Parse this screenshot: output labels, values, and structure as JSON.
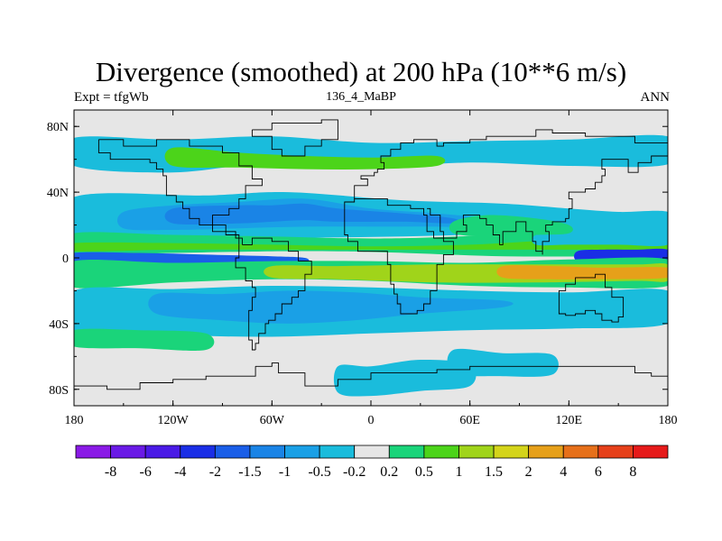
{
  "chart_data": {
    "type": "heatmap",
    "title": "Divergence (smoothed) at 200 hPa (10**6 m/s)",
    "subtitle_left": "Expt = tfgWb",
    "subtitle_center": "136_4_MaBP",
    "subtitle_right": "ANN",
    "x_ticks": [
      {
        "value": -180,
        "label": "180"
      },
      {
        "value": -120,
        "label": "120W"
      },
      {
        "value": -60,
        "label": "60W"
      },
      {
        "value": 0,
        "label": "0"
      },
      {
        "value": 60,
        "label": "60E"
      },
      {
        "value": 120,
        "label": "120E"
      },
      {
        "value": 180,
        "label": "180"
      }
    ],
    "y_ticks": [
      {
        "value": 80,
        "label": "80N"
      },
      {
        "value": 40,
        "label": "40N"
      },
      {
        "value": 0,
        "label": "0"
      },
      {
        "value": -40,
        "label": "40S"
      },
      {
        "value": -80,
        "label": "80S"
      }
    ],
    "xlim": [
      -180,
      180
    ],
    "ylim": [
      -90,
      90
    ],
    "colorbar": {
      "colors": [
        "#8a1ae6",
        "#6a1ae6",
        "#4a1ae6",
        "#1a2ee6",
        "#1a5ee8",
        "#1a84e6",
        "#1aa0e6",
        "#1abcdc",
        "#e6e6e6",
        "#1ad47a",
        "#4cd41a",
        "#a0d41a",
        "#d4d41a",
        "#e6a01a",
        "#e6701a",
        "#e6401a",
        "#e61a1a"
      ],
      "labels": [
        "-8",
        "-6",
        "-4",
        "-2",
        "-1.5",
        "-1",
        "-0.5",
        "-0.2",
        "0.2",
        "0.5",
        "1",
        "1.5",
        "2",
        "4",
        "6",
        "8"
      ]
    },
    "regions": [
      {
        "color": "#1abcdc",
        "lon": [
          -180,
          -100,
          -50,
          20,
          80,
          120,
          150,
          180
        ],
        "lat_top": [
          37,
          38,
          40,
          35,
          33,
          30,
          28,
          28
        ],
        "lat_bot": [
          8,
          10,
          12,
          13,
          15,
          18,
          18,
          18
        ]
      },
      {
        "color": "#1aa0e6",
        "lon": [
          -150,
          -120,
          -80,
          -40,
          0,
          40,
          80
        ],
        "lat_top": [
          28,
          32,
          34,
          36,
          30,
          27,
          23
        ],
        "lat_bot": [
          18,
          17,
          18,
          19,
          19,
          19,
          18
        ]
      },
      {
        "color": "#1a84e6",
        "lon": [
          -120,
          -80,
          -60,
          -40,
          -20,
          20,
          50
        ],
        "lat_top": [
          30,
          32,
          32,
          33,
          30,
          27,
          24
        ],
        "lat_bot": [
          21,
          21,
          22,
          23,
          22,
          22,
          21
        ]
      },
      {
        "color": "#1ad47a",
        "lon": [
          -180,
          -120,
          -60,
          -20,
          20,
          80,
          140,
          180
        ],
        "lat_top": [
          15,
          14,
          13,
          12,
          12,
          14,
          16,
          14
        ],
        "lat_bot": [
          2,
          3,
          4,
          4,
          3,
          1,
          1,
          2
        ]
      },
      {
        "color": "#4cd41a",
        "lon": [
          -180,
          -120,
          -60,
          0,
          60,
          120,
          180
        ],
        "lat_top": [
          9,
          9,
          8,
          7,
          8,
          11,
          10
        ],
        "lat_bot": [
          4,
          5,
          5,
          5,
          5,
          5,
          5
        ]
      },
      {
        "color": "#1a5ee8",
        "lon": [
          -180,
          -140,
          -100,
          -60,
          -40
        ],
        "lat_top": [
          3,
          3,
          2,
          1,
          0
        ],
        "lat_bot": [
          -3,
          -4,
          -5,
          -4,
          -3
        ]
      },
      {
        "color": "#1a2ee6",
        "lon": [
          125,
          140,
          160,
          180
        ],
        "lat_top": [
          4,
          5,
          5,
          5
        ],
        "lat_bot": [
          -2,
          -2,
          -3,
          -3
        ]
      },
      {
        "color": "#1ad47a",
        "lon": [
          -180,
          -120,
          -60,
          0,
          60,
          120,
          180
        ],
        "lat_top": [
          -2,
          -3,
          -2,
          -2,
          -3,
          -1,
          -1
        ],
        "lat_bot": [
          -18,
          -15,
          -13,
          -14,
          -17,
          -18,
          -17
        ]
      },
      {
        "color": "#a0d41a",
        "lon": [
          -60,
          -20,
          40,
          100,
          160,
          180
        ],
        "lat_top": [
          -5,
          -5,
          -4,
          -4,
          -4,
          -4
        ],
        "lat_bot": [
          -12,
          -13,
          -15,
          -15,
          -14,
          -14
        ]
      },
      {
        "color": "#e6a01a",
        "lon": [
          80,
          110,
          140,
          180
        ],
        "lat_top": [
          -5,
          -5,
          -6,
          -6
        ],
        "lat_bot": [
          -12,
          -13,
          -13,
          -12
        ]
      },
      {
        "color": "#1abcdc",
        "lon": [
          -180,
          -120,
          -60,
          0,
          60,
          120,
          180
        ],
        "lat_top": [
          -20,
          -19,
          -17,
          -18,
          -20,
          -21,
          -20
        ],
        "lat_bot": [
          -45,
          -47,
          -48,
          -46,
          -44,
          -43,
          -40
        ]
      },
      {
        "color": "#1aa0e6",
        "lon": [
          -130,
          -90,
          -50,
          -10,
          30,
          80
        ],
        "lat_top": [
          -22,
          -22,
          -20,
          -21,
          -24,
          -26
        ],
        "lat_bot": [
          -34,
          -38,
          -40,
          -38,
          -34,
          -30
        ]
      },
      {
        "color": "#1ad47a",
        "lon": [
          -180,
          -140,
          -100
        ],
        "lat_top": [
          -44,
          -44,
          -46
        ],
        "lat_bot": [
          -54,
          -55,
          -56
        ]
      },
      {
        "color": "#1abcdc",
        "lon": [
          -180,
          -120,
          -60,
          0,
          60,
          120,
          180
        ],
        "lat_top": [
          73,
          72,
          74,
          70,
          71,
          72,
          74
        ],
        "lat_bot": [
          56,
          52,
          58,
          55,
          58,
          56,
          57
        ]
      },
      {
        "color": "#4cd41a",
        "lon": [
          -120,
          -80,
          -40,
          0,
          40
        ],
        "lat_top": [
          67,
          64,
          62,
          61,
          62
        ],
        "lat_bot": [
          56,
          55,
          54,
          54,
          56
        ]
      },
      {
        "color": "#1abcdc",
        "lon": [
          100,
          120,
          150,
          180
        ],
        "lat_top": [
          14,
          18,
          20,
          20
        ],
        "lat_bot": [
          8,
          8,
          8,
          8
        ]
      },
      {
        "color": "#1ad47a",
        "lon": [
          50,
          70,
          100,
          120
        ],
        "lat_top": [
          22,
          26,
          24,
          20
        ],
        "lat_bot": [
          15,
          13,
          14,
          15
        ]
      },
      {
        "color": "#1abcdc",
        "lon": [
          -20,
          0,
          30,
          60
        ],
        "lat_top": [
          -66,
          -66,
          -62,
          -65
        ],
        "lat_bot": [
          -82,
          -84,
          -81,
          -78
        ]
      },
      {
        "color": "#1abcdc",
        "lon": [
          50,
          80,
          110
        ],
        "lat_top": [
          -56,
          -58,
          -59
        ],
        "lat_bot": [
          -70,
          -72,
          -71
        ]
      }
    ]
  }
}
